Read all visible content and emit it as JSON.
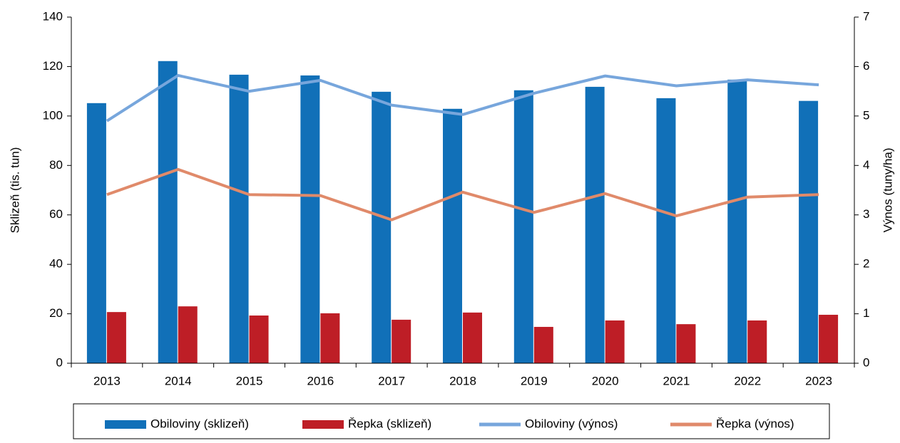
{
  "chart_data": {
    "type": "bar",
    "categories": [
      "2013",
      "2014",
      "2015",
      "2016",
      "2017",
      "2018",
      "2019",
      "2020",
      "2021",
      "2022",
      "2023"
    ],
    "series": [
      {
        "name": "Obiloviny (sklizeň)",
        "type": "bar",
        "color": "#1170b8",
        "values": [
          105.2,
          122.2,
          116.7,
          116.4,
          109.8,
          102.9,
          110.4,
          111.8,
          107.2,
          114.7,
          106.1
        ]
      },
      {
        "name": "Řepka (sklizeň)",
        "type": "bar",
        "color": "#be1e26",
        "values": [
          20.7,
          23.0,
          19.3,
          20.2,
          17.6,
          20.5,
          14.7,
          17.3,
          15.8,
          17.3,
          19.6
        ]
      },
      {
        "name": "Obiloviny (výnos)",
        "type": "line",
        "axis": "y2",
        "color": "#77a6dc",
        "values": [
          4.9,
          5.82,
          5.5,
          5.72,
          5.22,
          5.03,
          5.46,
          5.81,
          5.61,
          5.73,
          5.63
        ]
      },
      {
        "name": "Řepka (výnos)",
        "type": "line",
        "axis": "y2",
        "color": "#e08a6a",
        "values": [
          3.41,
          3.92,
          3.41,
          3.39,
          2.9,
          3.46,
          3.05,
          3.43,
          2.98,
          3.36,
          3.41
        ]
      }
    ],
    "ylabel": "Sklizeň (tis. tun)",
    "y2label": "Výnos (tuny/ha)",
    "ylim": [
      0,
      140
    ],
    "yticks": [
      0,
      20,
      40,
      60,
      80,
      100,
      120,
      140
    ],
    "y2lim": [
      0,
      7
    ],
    "y2ticks": [
      0,
      1,
      2,
      3,
      4,
      5,
      6,
      7
    ],
    "legend": "bottom"
  }
}
